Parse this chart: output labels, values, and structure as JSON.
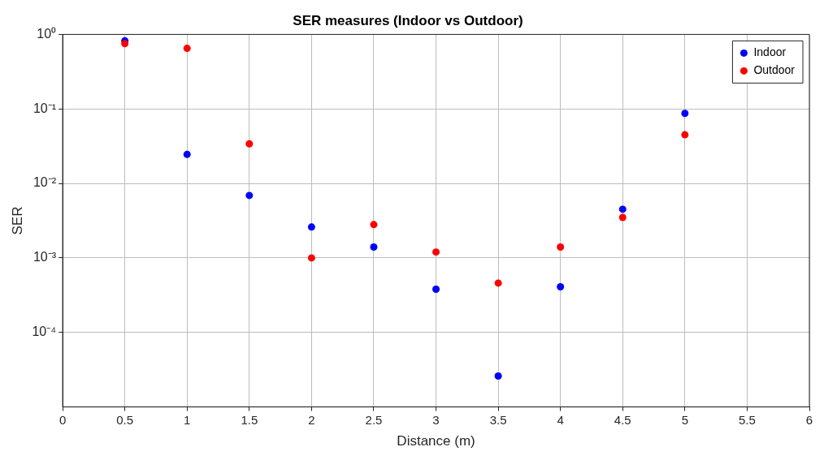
{
  "chart_data": {
    "type": "scatter",
    "title": "SER measures (Indoor vs Outdoor)",
    "xlabel": "Distance (m)",
    "ylabel": "SER",
    "x": [
      0.5,
      1,
      1.5,
      2,
      2.5,
      3,
      3.5,
      4,
      4.5,
      5
    ],
    "series": [
      {
        "name": "Indoor",
        "color": "#0000ff",
        "values": [
          0.82,
          0.0245,
          0.0069,
          0.0026,
          0.0014,
          0.00038,
          2.6e-05,
          0.00041,
          0.0045,
          0.087
        ]
      },
      {
        "name": "Outdoor",
        "color": "#ff0000",
        "values": [
          0.75,
          0.65,
          0.034,
          0.001,
          0.0028,
          0.0012,
          0.00046,
          0.0014,
          0.0035,
          0.045
        ]
      }
    ],
    "xlim": [
      0,
      6
    ],
    "xticks": [
      0,
      0.5,
      1,
      1.5,
      2,
      2.5,
      3,
      3.5,
      4,
      4.5,
      5,
      5.5,
      6
    ],
    "ylim": [
      1e-05,
      1
    ],
    "yticks": [
      {
        "value": 0.0001,
        "label": "10⁻⁴"
      },
      {
        "value": 0.001,
        "label": "10⁻³"
      },
      {
        "value": 0.01,
        "label": "10⁻²"
      },
      {
        "value": 0.1,
        "label": "10⁻¹"
      },
      {
        "value": 1,
        "label": "10⁰"
      }
    ],
    "log": "y",
    "grid": true,
    "legend": "top right",
    "marker": "circle"
  }
}
